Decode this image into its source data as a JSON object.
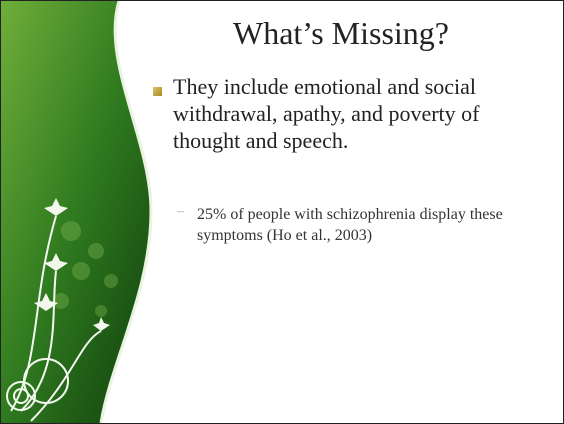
{
  "slide": {
    "title": "What’s Missing?",
    "bullets": [
      {
        "text": "They include emotional and social withdrawal, apathy, and poverty of thought and speech.",
        "sub_bullets": [
          {
            "marker": "–",
            "text": "25% of people with schizophrenia display these symptoms (Ho et al., 2003)"
          }
        ]
      }
    ]
  }
}
